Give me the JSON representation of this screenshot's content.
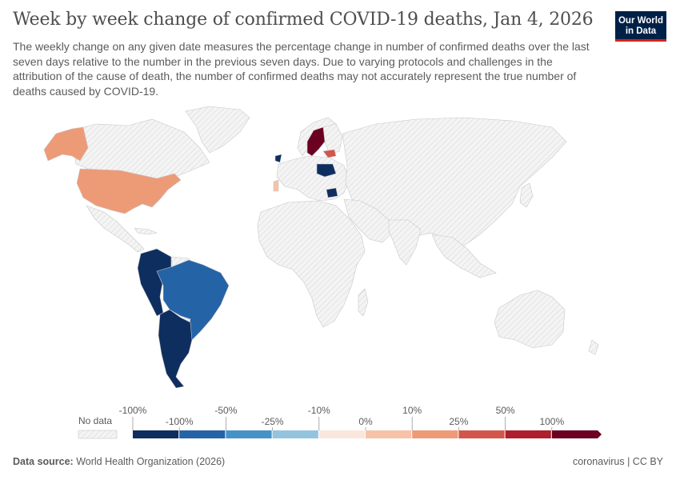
{
  "header": {
    "title": "Week by week change of confirmed COVID-19 deaths, Jan 4, 2026",
    "subtitle": "The weekly change on any given date measures the percentage change in number of confirmed deaths over the last seven days relative to the number in the previous seven days. Due to varying protocols and challenges in the attribution of the cause of death, the number of confirmed deaths may not accurately represent the true number of deaths caused by COVID-19."
  },
  "logo": {
    "line1": "Our World",
    "line2": "in Data",
    "bg": "#002147",
    "accent": "#ce261e"
  },
  "legend": {
    "no_data_label": "No data",
    "top_labels": [
      "-100%",
      "-50%",
      "-10%",
      "10%",
      "50%"
    ],
    "bottom_labels": [
      "-100%",
      "-25%",
      "0%",
      "25%",
      "100%"
    ],
    "colors": [
      "#0e2e5f",
      "#2563a7",
      "#4692c6",
      "#93c4de",
      "#fbe6dc",
      "#f7c2a8",
      "#ed9b77",
      "#d2564a",
      "#ad1f2d",
      "#6b0020"
    ]
  },
  "footer": {
    "source_label": "Data source:",
    "source_value": "World Health Organization (2026)",
    "right": "coronavirus | CC BY"
  },
  "map_colors": {
    "no_data_fill": "#f2f2f2",
    "border": "#c8c8c8",
    "usa": "#ed9b77",
    "alaska": "#ed9b77",
    "brazil": "#2563a7",
    "andes": "#0e2e5f",
    "southern_cone": "#0e2e5f",
    "sweden": "#6b0020",
    "latvia": "#d2564a",
    "poland": "#0e2e5f",
    "ireland": "#0e2e5f",
    "bulgaria": "#0e2e5f",
    "portugal": "#f7c2a8"
  }
}
